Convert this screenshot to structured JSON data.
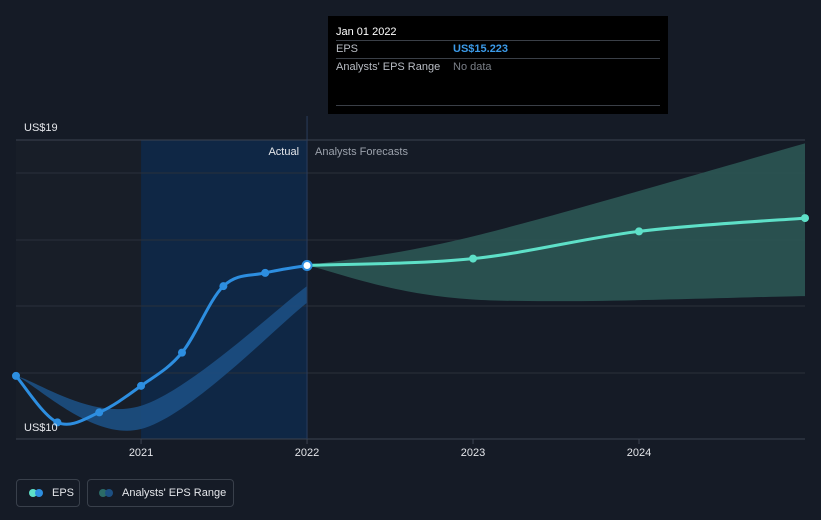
{
  "tooltip": {
    "date": "Jan 01 2022",
    "eps_label": "EPS",
    "eps_value": "US$15.223",
    "range_label": "Analysts' EPS Range",
    "range_value": "No data"
  },
  "labels": {
    "actual": "Actual",
    "forecast": "Analysts Forecasts"
  },
  "legend": {
    "eps_label": "EPS",
    "range_label": "Analysts' EPS Range"
  },
  "colors": {
    "background": "#151b26",
    "eps_actual": "#2d8ee0",
    "eps_forecast": "#5ee0c8",
    "range_actual": "#1c4f82",
    "range_forecast": "#2b5754",
    "actual_shade": "#0f2745"
  },
  "chart_data": {
    "type": "line",
    "title": "",
    "xlabel": "",
    "ylabel": "",
    "y_tick_labels": [
      "US$10",
      "US$19"
    ],
    "ylim": [
      10,
      19
    ],
    "xlim": [
      "2020-04-01",
      "2024-12-31"
    ],
    "x_tick_labels": [
      "2021",
      "2022",
      "2023",
      "2024"
    ],
    "x_ticks": [
      "2021-01-01",
      "2022-01-01",
      "2023-01-01",
      "2024-01-01"
    ],
    "grid": true,
    "highlight_date": "2022-01-01",
    "series": [
      {
        "name": "EPS",
        "role": "actual",
        "x": [
          "2020-04-01",
          "2020-07-01",
          "2020-10-01",
          "2021-01-01",
          "2021-04-01",
          "2021-07-01",
          "2021-10-01",
          "2022-01-01"
        ],
        "y": [
          11.9,
          10.5,
          10.8,
          11.6,
          12.6,
          14.6,
          15.0,
          15.223
        ]
      },
      {
        "name": "EPS",
        "role": "forecast",
        "x": [
          "2022-01-01",
          "2023-01-01",
          "2024-01-01",
          "2024-12-31"
        ],
        "y": [
          15.223,
          15.43,
          16.25,
          16.65
        ]
      },
      {
        "name": "Analysts' EPS Range",
        "role": "actual-range",
        "x": [
          "2020-04-01",
          "2021-01-01",
          "2022-01-01"
        ],
        "upper": [
          11.9,
          11.0,
          14.6
        ],
        "lower": [
          11.9,
          10.3,
          14.1
        ]
      },
      {
        "name": "Analysts' EPS Range",
        "role": "forecast-range",
        "x": [
          "2022-01-01",
          "2023-01-01",
          "2024-12-31"
        ],
        "upper": [
          15.223,
          16.1,
          18.9
        ],
        "lower": [
          15.223,
          14.2,
          14.3
        ]
      }
    ]
  }
}
